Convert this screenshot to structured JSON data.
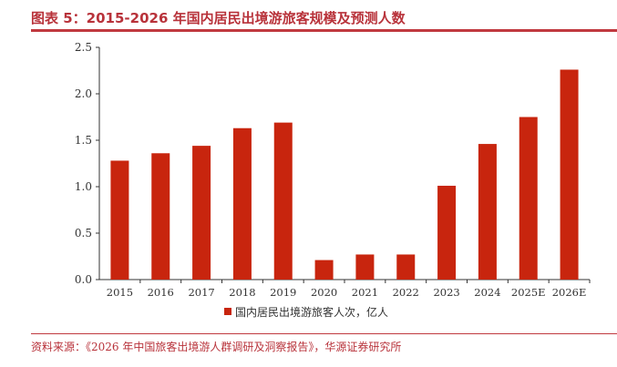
{
  "title": "图表 5：2015-2026 年国内居民出境游旅客规模及预测人数",
  "source": "资料来源：《2026 年中国旅客出境游人群调研及洞察报告》，华源证券研究所",
  "chart_data": {
    "type": "bar",
    "categories": [
      "2015",
      "2016",
      "2017",
      "2018",
      "2019",
      "2020",
      "2021",
      "2022",
      "2023",
      "2024",
      "2025E",
      "2026E"
    ],
    "series": [
      {
        "name": "国内居民出境游旅客人次，亿人",
        "values": [
          1.28,
          1.36,
          1.44,
          1.63,
          1.69,
          0.21,
          0.27,
          0.27,
          1.01,
          1.46,
          1.75,
          2.26
        ],
        "color": "#c8250e"
      }
    ],
    "yticks": [
      "0.0",
      "0.5",
      "1.0",
      "1.5",
      "2.0",
      "2.5"
    ],
    "ylim": [
      0,
      2.5
    ],
    "grid": false,
    "legend": "bottom"
  }
}
